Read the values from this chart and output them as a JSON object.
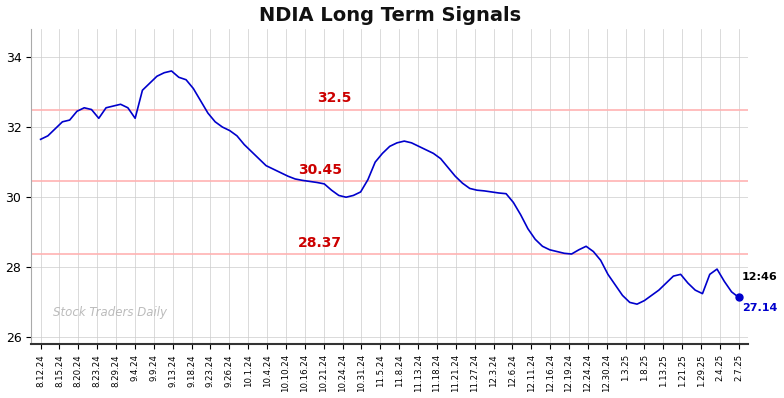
{
  "title": "NDIA Long Term Signals",
  "title_fontsize": 14,
  "title_fontweight": "bold",
  "line_color": "#0000cc",
  "line_width": 1.2,
  "background_color": "#ffffff",
  "grid_color": "#cccccc",
  "ylabel_values": [
    26,
    28,
    30,
    32,
    34
  ],
  "ylim": [
    25.8,
    34.8
  ],
  "hlines": [
    32.5,
    30.45,
    28.37
  ],
  "hline_color": "#ffb3b3",
  "hline_labels": [
    "32.5",
    "30.45",
    "28.37"
  ],
  "hline_label_color": "#cc0000",
  "watermark": "Stock Traders Daily",
  "watermark_color": "#b0b0b0",
  "annotation_time": "12:46",
  "annotation_price": "27.14",
  "dot_color": "#0000cc",
  "xtick_labels": [
    "8.12.24",
    "8.15.24",
    "8.20.24",
    "8.23.24",
    "8.29.24",
    "9.4.24",
    "9.9.24",
    "9.13.24",
    "9.18.24",
    "9.23.24",
    "9.26.24",
    "10.1.24",
    "10.4.24",
    "10.10.24",
    "10.16.24",
    "10.21.24",
    "10.24.24",
    "10.31.24",
    "11.5.24",
    "11.8.24",
    "11.13.24",
    "11.18.24",
    "11.21.24",
    "11.27.24",
    "12.3.24",
    "12.6.24",
    "12.11.24",
    "12.16.24",
    "12.19.24",
    "12.24.24",
    "12.30.24",
    "1.3.25",
    "1.8.25",
    "1.13.25",
    "1.21.25",
    "1.29.25",
    "2.4.25",
    "2.7.25"
  ],
  "prices": [
    31.65,
    31.75,
    31.95,
    32.15,
    32.2,
    32.45,
    32.55,
    32.5,
    32.25,
    32.55,
    32.6,
    32.65,
    32.55,
    32.25,
    33.05,
    33.25,
    33.45,
    33.55,
    33.6,
    33.42,
    33.35,
    33.1,
    32.75,
    32.4,
    32.15,
    32.0,
    31.9,
    31.75,
    31.5,
    31.3,
    31.1,
    30.9,
    30.8,
    30.7,
    30.6,
    30.52,
    30.48,
    30.45,
    30.42,
    30.38,
    30.2,
    30.05,
    30.0,
    30.05,
    30.15,
    30.5,
    31.0,
    31.25,
    31.45,
    31.55,
    31.6,
    31.55,
    31.45,
    31.35,
    31.25,
    31.1,
    30.85,
    30.6,
    30.4,
    30.25,
    30.2,
    30.18,
    30.15,
    30.12,
    30.1,
    29.85,
    29.5,
    29.1,
    28.8,
    28.6,
    28.5,
    28.45,
    28.4,
    28.38,
    28.5,
    28.6,
    28.45,
    28.2,
    27.8,
    27.5,
    27.2,
    27.0,
    26.95,
    27.05,
    27.2,
    27.35,
    27.55,
    27.75,
    27.8,
    27.55,
    27.35,
    27.25,
    27.8,
    27.95,
    27.6,
    27.3,
    27.14
  ]
}
